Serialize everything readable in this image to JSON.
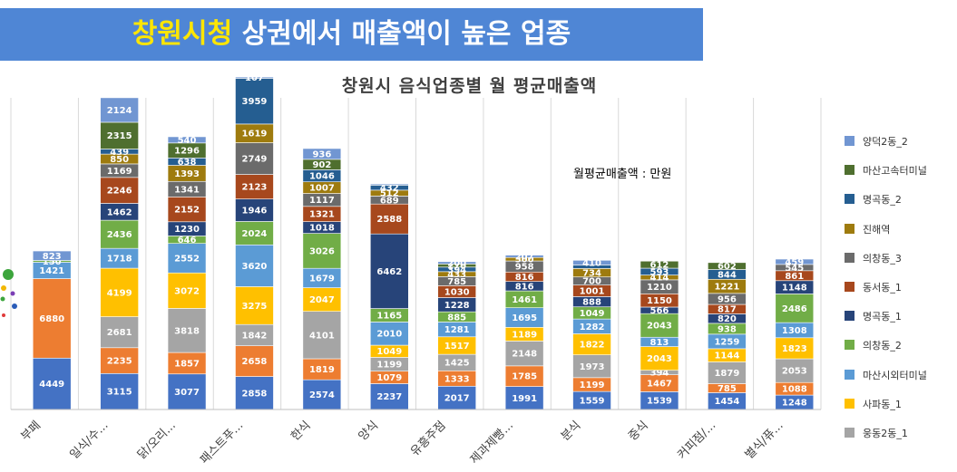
{
  "banner": {
    "highlight": "창원시청",
    "rest": " 상권에서 매출액이 높은 업종"
  },
  "unit_note": "월평균매출액 : 만원",
  "legend_items": [
    {
      "label": "양덕2동_2",
      "color": "#7196d2"
    },
    {
      "label": "마산고속터미널",
      "color": "#4f6f2f"
    },
    {
      "label": "명곡동_2",
      "color": "#255e91"
    },
    {
      "label": "진해역",
      "color": "#9e7b0e"
    },
    {
      "label": "의창동_3",
      "color": "#6b6b6b"
    },
    {
      "label": "동서동_1",
      "color": "#a7481d"
    },
    {
      "label": "명곡동_1",
      "color": "#274479"
    },
    {
      "label": "의창동_2",
      "color": "#71ad47"
    },
    {
      "label": "마산시외터미널",
      "color": "#5b9bd5"
    },
    {
      "label": "사파동_1",
      "color": "#ffc000"
    },
    {
      "label": "웅동2동_1",
      "color": "#a5a5a5"
    }
  ],
  "chart_data": {
    "type": "bar",
    "stacked": true,
    "title": "창원시 음식업종별 월 평균매출액",
    "categories": [
      "부페",
      "일식/수...",
      "닭/오리...",
      "패스트푸...",
      "한식",
      "양식",
      "유흥주점",
      "제과제빵...",
      "분식",
      "중식",
      "커피점/...",
      "별식/퓨..."
    ],
    "bars": [
      [
        [
          4449,
          "#4472c4",
          "4449"
        ],
        [
          6880,
          "#ed7d31",
          "6880"
        ],
        [
          1421,
          "#5b9bd5",
          "1421"
        ],
        [
          150,
          "#71ad47",
          "150"
        ],
        [
          823,
          "#7196d2",
          "823"
        ]
      ],
      [
        [
          3115,
          "#4472c4",
          "3115"
        ],
        [
          2235,
          "#ed7d31",
          "2235"
        ],
        [
          2681,
          "#a5a5a5",
          "2681"
        ],
        [
          4199,
          "#ffc000",
          "4199"
        ],
        [
          1718,
          "#5b9bd5",
          "1718"
        ],
        [
          2436,
          "#71ad47",
          "2436"
        ],
        [
          1462,
          "#274479",
          "1462"
        ],
        [
          2246,
          "#a7481d",
          "2246"
        ],
        [
          1169,
          "#6b6b6b",
          "1169"
        ],
        [
          850,
          "#9e7b0e",
          "850"
        ],
        [
          439,
          "#255e91",
          "439"
        ],
        [
          2315,
          "#4f6f2f",
          "2315"
        ],
        [
          2124,
          "#7196d2",
          "2124"
        ]
      ],
      [
        [
          3077,
          "#4472c4",
          "3077"
        ],
        [
          1857,
          "#ed7d31",
          "1857"
        ],
        [
          3818,
          "#a5a5a5",
          "3818"
        ],
        [
          3072,
          "#ffc000",
          "3072"
        ],
        [
          2552,
          "#5b9bd5",
          "2552"
        ],
        [
          646,
          "#71ad47",
          "646"
        ],
        [
          1230,
          "#274479",
          "1230"
        ],
        [
          2152,
          "#a7481d",
          "2152"
        ],
        [
          1341,
          "#6b6b6b",
          "1341"
        ],
        [
          1393,
          "#9e7b0e",
          "1393"
        ],
        [
          638,
          "#255e91",
          "638"
        ],
        [
          1296,
          "#4f6f2f",
          "1296"
        ],
        [
          540,
          "#7196d2",
          "540"
        ]
      ],
      [
        [
          2858,
          "#4472c4",
          "2858"
        ],
        [
          2658,
          "#ed7d31",
          "2658"
        ],
        [
          1842,
          "#a5a5a5",
          "1842"
        ],
        [
          3275,
          "#ffc000",
          "3275"
        ],
        [
          3620,
          "#5b9bd5",
          "3620"
        ],
        [
          2024,
          "#71ad47",
          "2024"
        ],
        [
          1946,
          "#274479",
          "1946"
        ],
        [
          2123,
          "#a7481d",
          "2123"
        ],
        [
          2749,
          "#6b6b6b",
          "2749"
        ],
        [
          1619,
          "#9e7b0e",
          "1619"
        ],
        [
          3959,
          "#255e91",
          "3959"
        ],
        [
          107,
          "#7196d2",
          "107"
        ]
      ],
      [
        [
          2574,
          "#4472c4",
          "2574"
        ],
        [
          1819,
          "#ed7d31",
          "1819"
        ],
        [
          4101,
          "#a5a5a5",
          "4101"
        ],
        [
          2047,
          "#ffc000",
          "2047"
        ],
        [
          1679,
          "#5b9bd5",
          "1679"
        ],
        [
          3026,
          "#71ad47",
          "3026"
        ],
        [
          1018,
          "#274479",
          "1018"
        ],
        [
          1321,
          "#a7481d",
          "1321"
        ],
        [
          1117,
          "#6b6b6b",
          "1117"
        ],
        [
          1007,
          "#9e7b0e",
          "1007"
        ],
        [
          1046,
          "#255e91",
          "1046"
        ],
        [
          902,
          "#4f6f2f",
          "902"
        ],
        [
          936,
          "#7196d2",
          "936"
        ]
      ],
      [
        [
          2237,
          "#4472c4",
          "2237"
        ],
        [
          1079,
          "#ed7d31",
          "1079"
        ],
        [
          1199,
          "#a5a5a5",
          "1199"
        ],
        [
          1049,
          "#ffc000",
          "1049"
        ],
        [
          2010,
          "#5b9bd5",
          "2010"
        ],
        [
          1165,
          "#71ad47",
          "1165"
        ],
        [
          6462,
          "#274479",
          "6462"
        ],
        [
          2588,
          "#a7481d",
          "2588"
        ],
        [
          689,
          "#6b6b6b",
          "689"
        ],
        [
          512,
          "#9e7b0e",
          "512"
        ],
        [
          432,
          "#255e91",
          "432"
        ],
        [
          100,
          "#7196d2",
          ""
        ]
      ],
      [
        [
          2017,
          "#4472c4",
          "2017"
        ],
        [
          1333,
          "#ed7d31",
          "1333"
        ],
        [
          1425,
          "#a5a5a5",
          "1425"
        ],
        [
          1517,
          "#ffc000",
          "1517"
        ],
        [
          1281,
          "#5b9bd5",
          "1281"
        ],
        [
          885,
          "#71ad47",
          "885"
        ],
        [
          1228,
          "#274479",
          "1228"
        ],
        [
          1030,
          "#a7481d",
          "1030"
        ],
        [
          785,
          "#6b6b6b",
          "785"
        ],
        [
          433,
          "#9e7b0e",
          "433"
        ],
        [
          394,
          "#255e91",
          "394"
        ],
        [
          270,
          "#4f6f2f",
          "270"
        ],
        [
          200,
          "#7196d2",
          "200"
        ]
      ],
      [
        [
          1991,
          "#4472c4",
          "1991"
        ],
        [
          1785,
          "#ed7d31",
          "1785"
        ],
        [
          2148,
          "#a5a5a5",
          "2148"
        ],
        [
          1189,
          "#ffc000",
          "1189"
        ],
        [
          1695,
          "#5b9bd5",
          "1695"
        ],
        [
          1461,
          "#71ad47",
          "1461"
        ],
        [
          816,
          "#274479",
          "816"
        ],
        [
          816,
          "#a7481d",
          "816"
        ],
        [
          958,
          "#6b6b6b",
          "958"
        ],
        [
          300,
          "#9e7b0e",
          "300"
        ],
        [
          207,
          "#7196d2",
          "207"
        ]
      ],
      [
        [
          1559,
          "#4472c4",
          "1559"
        ],
        [
          1199,
          "#ed7d31",
          "1199"
        ],
        [
          1973,
          "#a5a5a5",
          "1973"
        ],
        [
          1822,
          "#ffc000",
          "1822"
        ],
        [
          1282,
          "#5b9bd5",
          "1282"
        ],
        [
          1049,
          "#71ad47",
          "1049"
        ],
        [
          888,
          "#274479",
          "888"
        ],
        [
          1001,
          "#a7481d",
          "1001"
        ],
        [
          700,
          "#6b6b6b",
          "700"
        ],
        [
          734,
          "#9e7b0e",
          "734"
        ],
        [
          300,
          "#255e91",
          ""
        ],
        [
          410,
          "#7196d2",
          "410"
        ]
      ],
      [
        [
          1539,
          "#4472c4",
          "1539"
        ],
        [
          1467,
          "#ed7d31",
          "1467"
        ],
        [
          394,
          "#a5a5a5",
          "394"
        ],
        [
          2043,
          "#ffc000",
          "2043"
        ],
        [
          813,
          "#5b9bd5",
          "813"
        ],
        [
          2043,
          "#71ad47",
          "2043"
        ],
        [
          566,
          "#274479",
          "566"
        ],
        [
          1150,
          "#a7481d",
          "1150"
        ],
        [
          1210,
          "#6b6b6b",
          "1210"
        ],
        [
          414,
          "#9e7b0e",
          "414"
        ],
        [
          593,
          "#255e91",
          "593"
        ],
        [
          612,
          "#4f6f2f",
          "612"
        ]
      ],
      [
        [
          1454,
          "#4472c4",
          "1454"
        ],
        [
          785,
          "#ed7d31",
          "785"
        ],
        [
          1879,
          "#a5a5a5",
          "1879"
        ],
        [
          1144,
          "#ffc000",
          "1144"
        ],
        [
          1259,
          "#5b9bd5",
          "1259"
        ],
        [
          938,
          "#71ad47",
          "938"
        ],
        [
          820,
          "#274479",
          "820"
        ],
        [
          817,
          "#a7481d",
          "817"
        ],
        [
          956,
          "#6b6b6b",
          "956"
        ],
        [
          1221,
          "#9e7b0e",
          "1221"
        ],
        [
          844,
          "#255e91",
          "844"
        ],
        [
          602,
          "#4f6f2f",
          "602"
        ]
      ],
      [
        [
          1248,
          "#4472c4",
          "1248"
        ],
        [
          1088,
          "#ed7d31",
          "1088"
        ],
        [
          2053,
          "#a5a5a5",
          "2053"
        ],
        [
          1823,
          "#ffc000",
          "1823"
        ],
        [
          1308,
          "#5b9bd5",
          "1308"
        ],
        [
          2486,
          "#71ad47",
          "2486"
        ],
        [
          1148,
          "#274479",
          "1148"
        ],
        [
          861,
          "#a7481d",
          "861"
        ],
        [
          545,
          "#6b6b6b",
          "545"
        ],
        [
          459,
          "#7196d2",
          "459"
        ]
      ]
    ]
  }
}
